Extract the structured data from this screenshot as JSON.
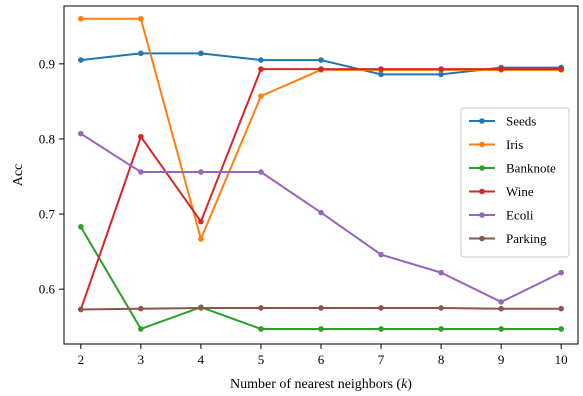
{
  "chart_data": {
    "type": "line",
    "title": "",
    "xlabel": "Number of nearest neighbors (",
    "xlabel_var": "k",
    "xlabel_close": ")",
    "ylabel": "Acc",
    "x": [
      2,
      3,
      4,
      5,
      6,
      7,
      8,
      9,
      10
    ],
    "xlim": [
      1.72,
      10.28
    ],
    "ylim": [
      0.527,
      0.977
    ],
    "xticks": [
      2,
      3,
      4,
      5,
      6,
      7,
      8,
      9,
      10
    ],
    "yticks": [
      0.6,
      0.7,
      0.8,
      0.9
    ],
    "grid": false,
    "legend_position": "center-right",
    "series": [
      {
        "name": "Seeds",
        "color": "#1f77b4",
        "values": [
          0.905,
          0.914,
          0.914,
          0.905,
          0.905,
          0.886,
          0.886,
          0.895,
          0.895
        ]
      },
      {
        "name": "Iris",
        "color": "#ff7f0e",
        "values": [
          0.96,
          0.96,
          0.667,
          0.857,
          0.892,
          0.892,
          0.892,
          0.892,
          0.892
        ]
      },
      {
        "name": "Banknote",
        "color": "#2ca02c",
        "values": [
          0.683,
          0.547,
          0.576,
          0.547,
          0.547,
          0.547,
          0.547,
          0.547,
          0.547
        ]
      },
      {
        "name": "Wine",
        "color": "#d62728",
        "values": [
          0.573,
          0.803,
          0.69,
          0.893,
          0.893,
          0.893,
          0.893,
          0.893,
          0.893
        ]
      },
      {
        "name": "Ecoli",
        "color": "#9467bd",
        "values": [
          0.807,
          0.756,
          0.756,
          0.756,
          0.702,
          0.646,
          0.622,
          0.583,
          0.622
        ]
      },
      {
        "name": "Parking",
        "color": "#8c564b",
        "values": [
          0.573,
          0.574,
          0.575,
          0.575,
          0.575,
          0.575,
          0.575,
          0.574,
          0.574
        ]
      }
    ]
  }
}
